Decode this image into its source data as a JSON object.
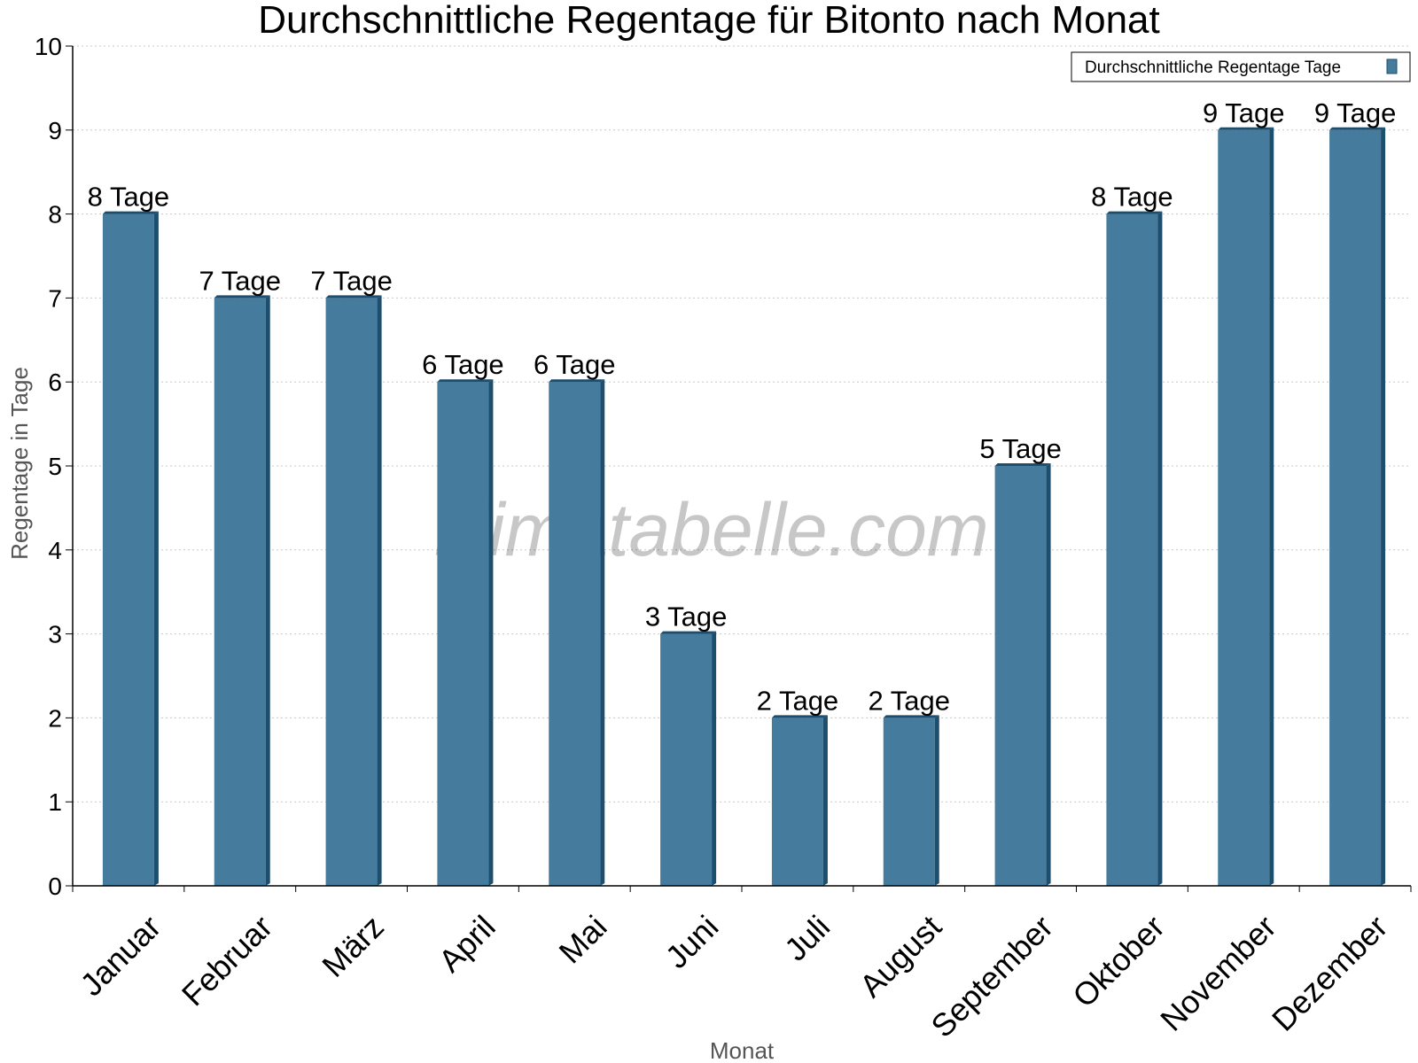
{
  "chart_data": {
    "type": "bar",
    "title": "Durchschnittliche Regentage für Bitonto nach Monat",
    "xlabel": "Monat",
    "ylabel": "Regentage in Tage",
    "ylim": [
      0,
      10
    ],
    "yticks": [
      "0",
      "1",
      "2",
      "3",
      "4",
      "5",
      "6",
      "7",
      "8",
      "9",
      "10"
    ],
    "grid": true,
    "legend_position": "top-right",
    "categories": [
      "Januar",
      "Februar",
      "März",
      "April",
      "Mai",
      "Juni",
      "Juli",
      "August",
      "September",
      "Oktober",
      "November",
      "Dezember"
    ],
    "series": [
      {
        "name": "Durchschnittliche Regentage Tage",
        "values": [
          8,
          7,
          7,
          6,
          6,
          3,
          2,
          2,
          5,
          8,
          9,
          9
        ],
        "data_labels": [
          "8 Tage",
          "7 Tage",
          "7 Tage",
          "6 Tage",
          "6 Tage",
          "3 Tage",
          "2 Tage",
          "2 Tage",
          "5 Tage",
          "8 Tage",
          "9 Tage",
          "9 Tage"
        ],
        "color": "#457b9d"
      }
    ]
  },
  "colors": {
    "bar_front": "#457b9d",
    "bar_side": "#1d4e6e",
    "bar_top": "#1d4e6e",
    "grid": "#c8c8c8"
  },
  "watermark": "klimatabelle.com"
}
